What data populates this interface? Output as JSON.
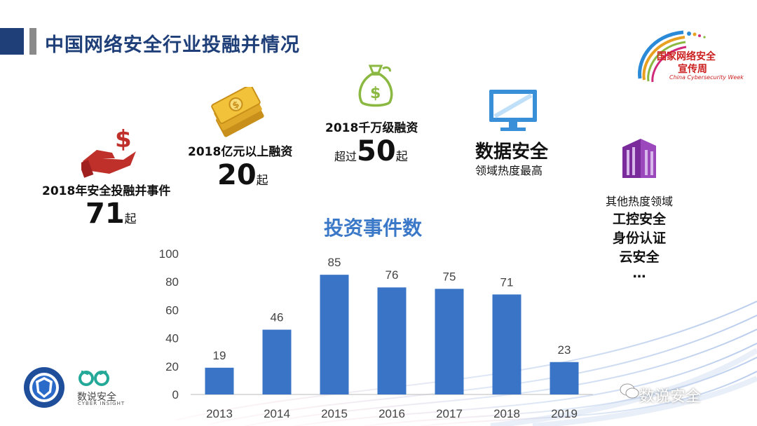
{
  "header": {
    "title": "中国网络安全行业投融并情况"
  },
  "logo": {
    "line1": "国家网络安全",
    "line2": "宣传周",
    "line3": "China Cybersecurity Week"
  },
  "stats": {
    "ma": {
      "label": "2018年安全投融并事件",
      "value": "71",
      "unit": "起"
    },
    "big": {
      "label": "2018亿元以上融资",
      "value": "20",
      "unit": "起"
    },
    "tenmil": {
      "label": "2018千万级融资",
      "prefix": "超过",
      "value": "50",
      "unit": "起"
    },
    "data_sec": {
      "title": "数据安全",
      "sub": "领域热度最高"
    },
    "others": {
      "title": "其他热度领域",
      "items": [
        "工控安全",
        "身份认证",
        "云安全",
        "…"
      ]
    }
  },
  "chart_data": {
    "type": "bar",
    "title": "投资事件数",
    "categories": [
      "2013",
      "2014",
      "2015",
      "2016",
      "2017",
      "2018",
      "2019"
    ],
    "values": [
      19,
      46,
      85,
      76,
      75,
      71,
      23
    ],
    "yticks": [
      "0",
      "20",
      "40",
      "60",
      "80",
      "100"
    ],
    "ylim": [
      0,
      100
    ],
    "bar_color": "#3a74c6",
    "grid": false
  },
  "footer": {
    "brand": "数说安全",
    "brand_sub": "CYBER INSIGHT",
    "watermark": "数说安全"
  },
  "colors": {
    "accent": "#1f3f79",
    "chart_blue": "#3a74c6",
    "icon_red": "#c0302a",
    "icon_gold": "#e8b830",
    "icon_green": "#8ab840",
    "icon_purple": "#7a2a9a"
  }
}
